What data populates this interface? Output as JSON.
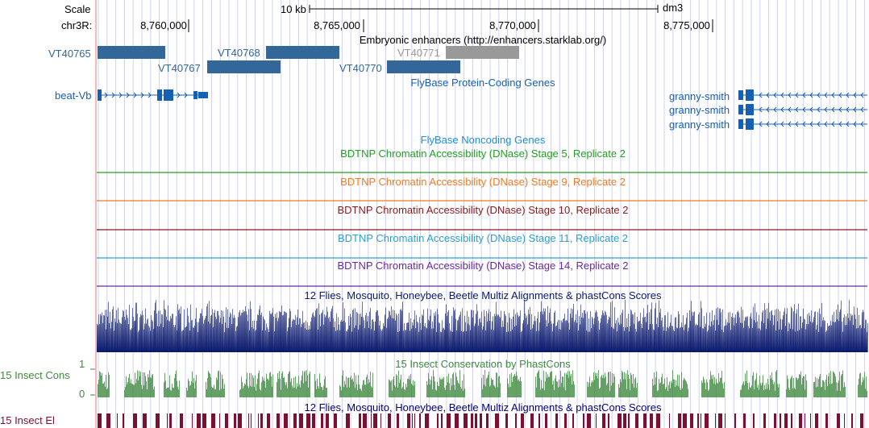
{
  "ruler": {
    "scale_label": "Scale",
    "chrom_label": "chr3R:",
    "scale_bar_label": "10 kb",
    "assembly": "dm3",
    "ticks": [
      "8,760,000",
      "8,765,000",
      "8,770,000",
      "8,775,000"
    ]
  },
  "tracks": {
    "enhancers": {
      "title": "Embryonic enhancers (http://enhancers.starklab.org/)",
      "items": [
        {
          "name": "VT40765",
          "color": "#336699",
          "shade": "dark"
        },
        {
          "name": "VT40767",
          "color": "#336699",
          "shade": "dark"
        },
        {
          "name": "VT40768",
          "color": "#336699",
          "shade": "dark"
        },
        {
          "name": "VT40770",
          "color": "#336699",
          "shade": "dark"
        },
        {
          "name": "VT40771",
          "color": "#999999",
          "shade": "light"
        }
      ]
    },
    "flybase_coding": {
      "title": "FlyBase Protein-Coding Genes",
      "color": "#1560b5",
      "genes": [
        {
          "name": "beat-Vb",
          "strand": "+"
        },
        {
          "name": "granny-smith",
          "strand": "-"
        },
        {
          "name": "granny-smith",
          "strand": "-"
        },
        {
          "name": "granny-smith",
          "strand": "-"
        }
      ]
    },
    "flybase_noncoding": {
      "title": "FlyBase Noncoding Genes",
      "color": "#1f8ed3"
    },
    "dnase": [
      {
        "title": "BDTNP Chromatin Accessibility (DNase) Stage 5, Replicate 2",
        "color": "#22a022"
      },
      {
        "title": "BDTNP Chromatin Accessibility (DNase) Stage 9, Replicate 2",
        "color": "#f07a22"
      },
      {
        "title": "BDTNP Chromatin Accessibility (DNase) Stage 10, Replicate 2",
        "color": "#8b1a1a"
      },
      {
        "title": "BDTNP Chromatin Accessibility (DNase) Stage 11, Replicate 2",
        "color": "#2aa0cc"
      },
      {
        "title": "BDTNP Chromatin Accessibility (DNase) Stage 14, Replicate 2",
        "color": "#6a2a9a"
      }
    ],
    "multiz": {
      "title": "12 Flies, Mosquito, Honeybee, Beetle Multiz Alignments & phastCons Scores",
      "color": "#0b1a6e"
    },
    "phastcons": {
      "title": "15 Insect Conservation by PhastCons",
      "left_label": "15 Insect Cons",
      "axis_max": "1",
      "axis_min": "0",
      "color": "#3f8a3f"
    },
    "multiz2": {
      "title": "12 Flies, Mosquito, Honeybee, Beetle Multiz Alignments & phastCons Scores",
      "color": "#000080"
    },
    "elements": {
      "left_label": "15 Insect El",
      "color": "#7b1030"
    }
  },
  "colors": {
    "title_blue": "#1560b5",
    "grid": "#d0d0f0",
    "left_guide": "#f4a0a0"
  }
}
